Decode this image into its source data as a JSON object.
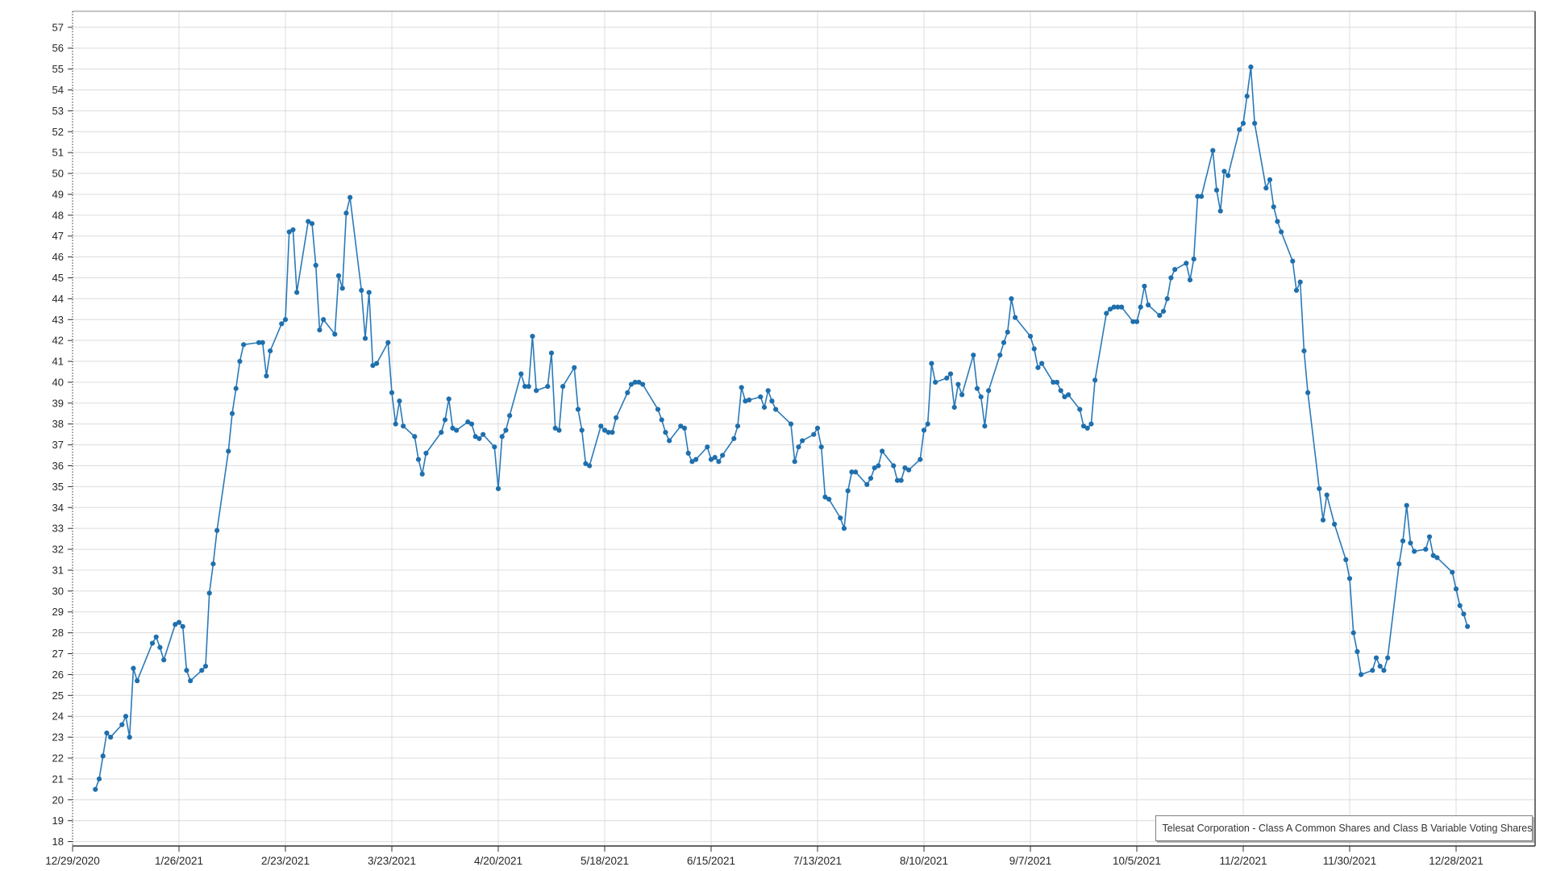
{
  "chart_data": {
    "type": "line",
    "title": "",
    "xlabel": "",
    "ylabel": "",
    "grid": true,
    "legend_position": "bottom-right",
    "y_ticks": {
      "min": 18,
      "max": 57,
      "step": 1
    },
    "x_tick_labels": [
      "12/29/2020",
      "1/26/2021",
      "2/23/2021",
      "3/23/2021",
      "4/20/2021",
      "5/18/2021",
      "6/15/2021",
      "7/13/2021",
      "8/10/2021",
      "9/7/2021",
      "10/5/2021",
      "11/2/2021",
      "11/30/2021",
      "12/28/2021"
    ],
    "colors": {
      "line": "#2a7ab9",
      "marker": "#1f6fad",
      "gridline": "#dcdcdc",
      "axis": "#333333",
      "tick_label": "#262626",
      "legend_border": "#808080",
      "background": "#ffffff"
    },
    "series": [
      {
        "name": "Telesat Corporation - Class A Common Shares and Class B Variable Voting Shares",
        "dates": [
          "1/4/2021",
          "1/5/2021",
          "1/6/2021",
          "1/7/2021",
          "1/8/2021",
          "1/11/2021",
          "1/12/2021",
          "1/13/2021",
          "1/14/2021",
          "1/15/2021",
          "1/19/2021",
          "1/20/2021",
          "1/21/2021",
          "1/22/2021",
          "1/25/2021",
          "1/26/2021",
          "1/27/2021",
          "1/28/2021",
          "1/29/2021",
          "2/1/2021",
          "2/2/2021",
          "2/3/2021",
          "2/4/2021",
          "2/5/2021",
          "2/8/2021",
          "2/9/2021",
          "2/10/2021",
          "2/11/2021",
          "2/12/2021",
          "2/16/2021",
          "2/17/2021",
          "2/18/2021",
          "2/19/2021",
          "2/22/2021",
          "2/23/2021",
          "2/24/2021",
          "2/25/2021",
          "2/26/2021",
          "3/1/2021",
          "3/2/2021",
          "3/3/2021",
          "3/4/2021",
          "3/5/2021",
          "3/8/2021",
          "3/9/2021",
          "3/10/2021",
          "3/11/2021",
          "3/12/2021",
          "3/15/2021",
          "3/16/2021",
          "3/17/2021",
          "3/18/2021",
          "3/19/2021",
          "3/22/2021",
          "3/23/2021",
          "3/24/2021",
          "3/25/2021",
          "3/26/2021",
          "3/29/2021",
          "3/30/2021",
          "3/31/2021",
          "4/1/2021",
          "4/5/2021",
          "4/6/2021",
          "4/7/2021",
          "4/8/2021",
          "4/9/2021",
          "4/12/2021",
          "4/13/2021",
          "4/14/2021",
          "4/15/2021",
          "4/16/2021",
          "4/19/2021",
          "4/20/2021",
          "4/21/2021",
          "4/22/2021",
          "4/23/2021",
          "4/26/2021",
          "4/27/2021",
          "4/28/2021",
          "4/29/2021",
          "4/30/2021",
          "5/3/2021",
          "5/4/2021",
          "5/5/2021",
          "5/6/2021",
          "5/7/2021",
          "5/10/2021",
          "5/11/2021",
          "5/12/2021",
          "5/13/2021",
          "5/14/2021",
          "5/17/2021",
          "5/18/2021",
          "5/19/2021",
          "5/20/2021",
          "5/21/2021",
          "5/24/2021",
          "5/25/2021",
          "5/26/2021",
          "5/27/2021",
          "5/28/2021",
          "6/1/2021",
          "6/2/2021",
          "6/3/2021",
          "6/4/2021",
          "6/7/2021",
          "6/8/2021",
          "6/9/2021",
          "6/10/2021",
          "6/11/2021",
          "6/14/2021",
          "6/15/2021",
          "6/16/2021",
          "6/17/2021",
          "6/18/2021",
          "6/21/2021",
          "6/22/2021",
          "6/23/2021",
          "6/24/2021",
          "6/25/2021",
          "6/28/2021",
          "6/29/2021",
          "6/30/2021",
          "7/1/2021",
          "7/2/2021",
          "7/6/2021",
          "7/7/2021",
          "7/8/2021",
          "7/9/2021",
          "7/12/2021",
          "7/13/2021",
          "7/14/2021",
          "7/15/2021",
          "7/16/2021",
          "7/19/2021",
          "7/20/2021",
          "7/21/2021",
          "7/22/2021",
          "7/23/2021",
          "7/26/2021",
          "7/27/2021",
          "7/28/2021",
          "7/29/2021",
          "7/30/2021",
          "8/2/2021",
          "8/3/2021",
          "8/4/2021",
          "8/5/2021",
          "8/6/2021",
          "8/9/2021",
          "8/10/2021",
          "8/11/2021",
          "8/12/2021",
          "8/13/2021",
          "8/16/2021",
          "8/17/2021",
          "8/18/2021",
          "8/19/2021",
          "8/20/2021",
          "8/23/2021",
          "8/24/2021",
          "8/25/2021",
          "8/26/2021",
          "8/27/2021",
          "8/30/2021",
          "8/31/2021",
          "9/1/2021",
          "9/2/2021",
          "9/3/2021",
          "9/7/2021",
          "9/8/2021",
          "9/9/2021",
          "9/10/2021",
          "9/13/2021",
          "9/14/2021",
          "9/15/2021",
          "9/16/2021",
          "9/17/2021",
          "9/20/2021",
          "9/21/2021",
          "9/22/2021",
          "9/23/2021",
          "9/24/2021",
          "9/27/2021",
          "9/28/2021",
          "9/29/2021",
          "9/30/2021",
          "10/1/2021",
          "10/4/2021",
          "10/5/2021",
          "10/6/2021",
          "10/7/2021",
          "10/8/2021",
          "10/11/2021",
          "10/12/2021",
          "10/13/2021",
          "10/14/2021",
          "10/15/2021",
          "10/18/2021",
          "10/19/2021",
          "10/20/2021",
          "10/21/2021",
          "10/22/2021",
          "10/25/2021",
          "10/26/2021",
          "10/27/2021",
          "10/28/2021",
          "10/29/2021",
          "11/1/2021",
          "11/2/2021",
          "11/3/2021",
          "11/4/2021",
          "11/5/2021",
          "11/8/2021",
          "11/9/2021",
          "11/10/2021",
          "11/11/2021",
          "11/12/2021",
          "11/15/2021",
          "11/16/2021",
          "11/17/2021",
          "11/18/2021",
          "11/19/2021",
          "11/22/2021",
          "11/23/2021",
          "11/24/2021",
          "11/26/2021",
          "11/29/2021",
          "11/30/2021",
          "12/1/2021",
          "12/2/2021",
          "12/3/2021",
          "12/6/2021",
          "12/7/2021",
          "12/8/2021",
          "12/9/2021",
          "12/10/2021",
          "12/13/2021",
          "12/14/2021",
          "12/15/2021",
          "12/16/2021",
          "12/17/2021",
          "12/20/2021",
          "12/21/2021",
          "12/22/2021",
          "12/23/2021",
          "12/27/2021",
          "12/28/2021",
          "12/29/2021",
          "12/30/2021",
          "12/31/2021"
        ],
        "values": [
          20.5,
          21.0,
          22.1,
          23.2,
          23.0,
          23.6,
          24.0,
          23.0,
          26.3,
          25.7,
          27.5,
          27.8,
          27.3,
          26.7,
          28.4,
          28.5,
          28.3,
          26.2,
          25.7,
          26.2,
          26.4,
          29.9,
          31.3,
          32.9,
          36.7,
          38.5,
          39.7,
          41.0,
          41.8,
          41.9,
          41.9,
          40.3,
          41.5,
          42.8,
          43.0,
          47.2,
          47.3,
          44.3,
          47.7,
          47.6,
          45.6,
          42.5,
          43.0,
          42.3,
          45.1,
          44.5,
          48.1,
          48.85,
          44.4,
          42.1,
          44.3,
          40.8,
          40.9,
          41.9,
          39.5,
          38.0,
          39.1,
          37.9,
          37.4,
          36.3,
          35.6,
          36.6,
          37.6,
          38.2,
          39.2,
          37.8,
          37.7,
          38.1,
          38.0,
          37.4,
          37.3,
          37.5,
          36.9,
          34.9,
          37.4,
          37.7,
          38.4,
          40.4,
          39.8,
          39.8,
          42.2,
          39.6,
          39.8,
          41.4,
          37.8,
          37.7,
          39.8,
          40.7,
          38.7,
          37.7,
          36.1,
          36.0,
          37.9,
          37.7,
          37.6,
          37.6,
          38.3,
          39.5,
          39.9,
          40.0,
          40.0,
          39.9,
          38.7,
          38.2,
          37.6,
          37.2,
          37.9,
          37.8,
          36.6,
          36.2,
          36.3,
          36.9,
          36.3,
          36.4,
          36.2,
          36.5,
          37.3,
          37.9,
          39.75,
          39.1,
          39.15,
          39.3,
          38.8,
          39.6,
          39.1,
          38.7,
          38.0,
          36.2,
          36.9,
          37.2,
          37.5,
          37.8,
          36.9,
          34.5,
          34.4,
          33.5,
          33.0,
          34.8,
          35.7,
          35.7,
          35.1,
          35.4,
          35.9,
          36.0,
          36.7,
          36.0,
          35.3,
          35.3,
          35.9,
          35.8,
          36.3,
          37.7,
          38.0,
          40.9,
          40.0,
          40.2,
          40.4,
          38.8,
          39.9,
          39.4,
          41.3,
          39.7,
          39.3,
          37.9,
          39.6,
          41.3,
          41.9,
          42.4,
          44.0,
          43.1,
          42.2,
          41.6,
          40.7,
          40.9,
          40.0,
          40.0,
          39.6,
          39.3,
          39.4,
          38.7,
          37.9,
          37.8,
          38.0,
          40.1,
          43.3,
          43.5,
          43.6,
          43.6,
          43.6,
          42.9,
          42.9,
          43.6,
          44.6,
          43.7,
          43.2,
          43.4,
          44.0,
          45.0,
          45.4,
          45.7,
          44.9,
          45.9,
          48.9,
          48.9,
          51.1,
          49.2,
          48.2,
          50.1,
          49.9,
          52.1,
          52.4,
          53.7,
          55.1,
          52.4,
          49.3,
          49.7,
          48.4,
          47.7,
          47.2,
          45.8,
          44.4,
          44.8,
          41.5,
          39.5,
          34.9,
          33.4,
          34.6,
          33.2,
          31.5,
          30.6,
          28.0,
          27.1,
          26.0,
          26.2,
          26.8,
          26.4,
          26.2,
          26.8,
          31.3,
          32.4,
          34.1,
          32.3,
          31.9,
          32.0,
          32.6,
          31.7,
          31.6,
          30.9,
          30.1,
          29.3,
          28.9,
          28.3
        ]
      }
    ]
  },
  "legend": {
    "series_label": "Telesat Corporation - Class A Common Shares and Class B Variable Voting Shares"
  }
}
